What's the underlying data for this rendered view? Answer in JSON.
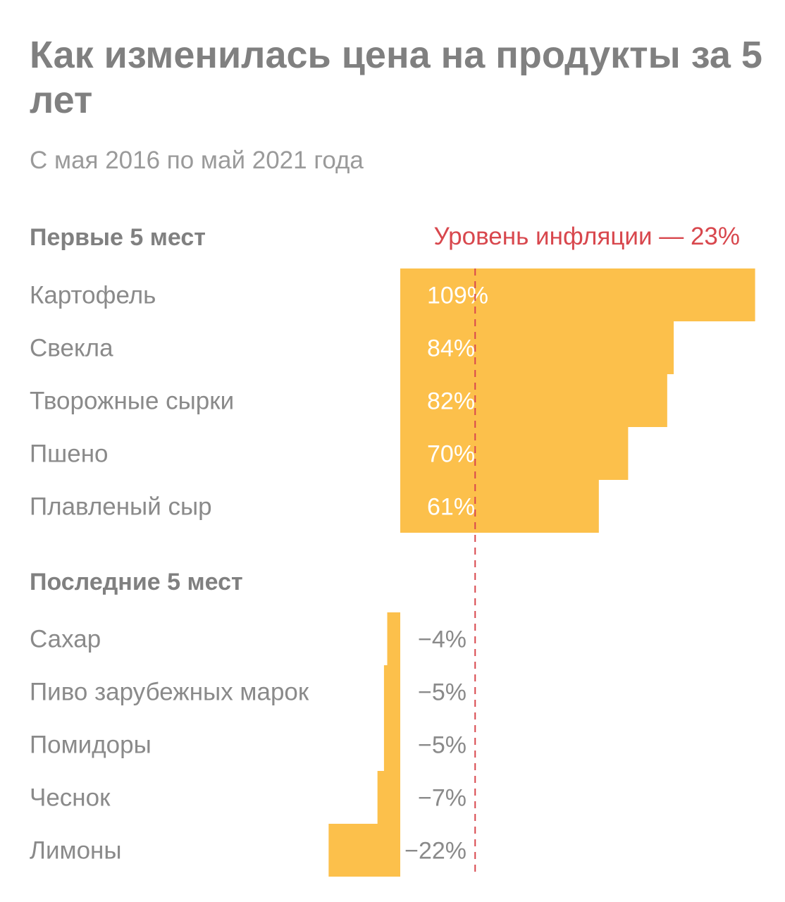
{
  "title": "Как изменилась цена на продукты за 5 лет",
  "subtitle": "С мая 2016 по май 2021 года",
  "chart_data": {
    "type": "bar",
    "orientation": "horizontal",
    "unit": "%",
    "bar_color": "#fcc04b",
    "reference_line": {
      "value": 23,
      "label": "Уровень инфляции — 23%",
      "color": "#d8474d",
      "style": "dashed"
    },
    "sections": [
      {
        "heading": "Первые 5 мест",
        "categories": [
          "Картофель",
          "Свекла",
          "Творожные сырки",
          "Пшено",
          "Плавленый сыр"
        ],
        "values": [
          109,
          84,
          82,
          70,
          61
        ],
        "value_labels": [
          "109%",
          "84%",
          "82%",
          "70%",
          "61%"
        ]
      },
      {
        "heading": "Последние 5 мест",
        "categories": [
          "Сахар",
          "Пиво зарубежных марок",
          "Помидоры",
          "Чеснок",
          "Лимоны"
        ],
        "values": [
          -4,
          -5,
          -5,
          -7,
          -22
        ],
        "value_labels": [
          "−4%",
          "−5%",
          "−5%",
          "−7%",
          "−22%"
        ]
      }
    ]
  }
}
